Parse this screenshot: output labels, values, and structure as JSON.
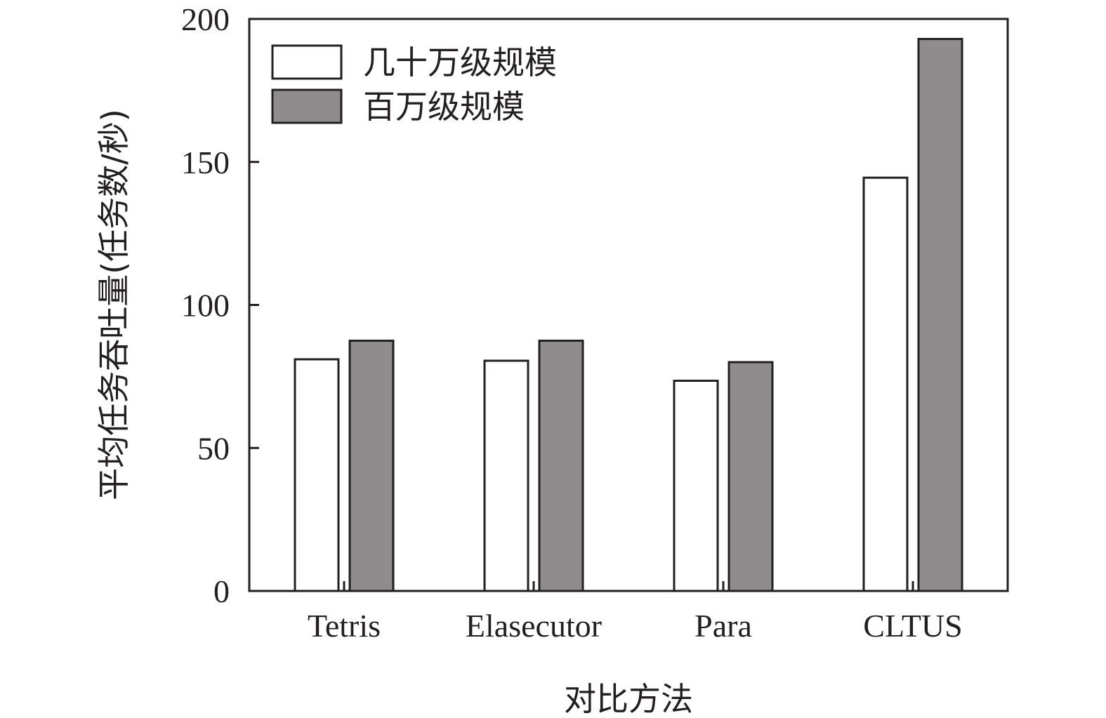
{
  "chart_data": {
    "type": "bar",
    "xlabel": "对比方法",
    "ylabel": "平均任务吞吐量(任务数/秒)",
    "categories": [
      "Tetris",
      "Elasecutor",
      "Para",
      "CLTUS"
    ],
    "series": [
      {
        "name": "几十万级规模",
        "color": "#ffffff",
        "values": [
          81,
          80.5,
          73.5,
          144.5
        ]
      },
      {
        "name": "百万级规模",
        "color": "#8e8c8d",
        "values": [
          87.5,
          87.5,
          80,
          193
        ]
      }
    ],
    "ylim": [
      0,
      200
    ],
    "yticks": [
      0,
      50,
      100,
      150,
      200
    ],
    "grid": false,
    "legend_position": "top-left"
  }
}
